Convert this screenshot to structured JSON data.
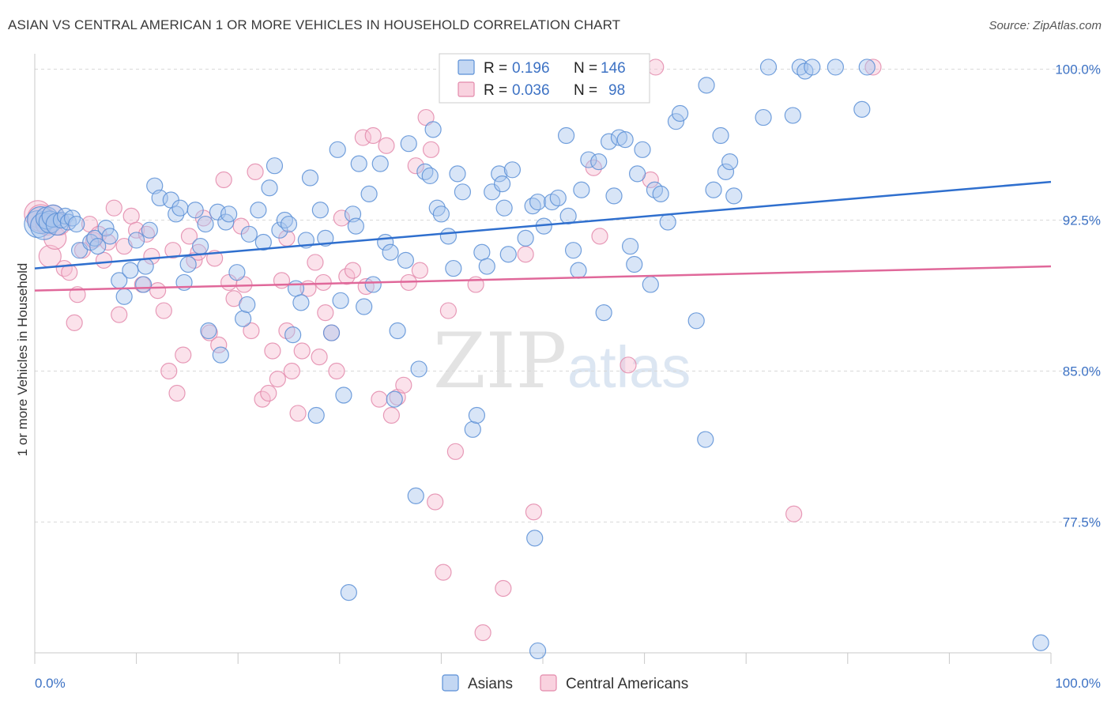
{
  "title": "ASIAN VS CENTRAL AMERICAN 1 OR MORE VEHICLES IN HOUSEHOLD CORRELATION CHART",
  "source": "Source: ZipAtlas.com",
  "watermark": {
    "zip": "ZIP",
    "atlas": "atlas"
  },
  "colors": {
    "asians_fill": "#a9c6ee",
    "asians_stroke": "#5a8fd6",
    "asians_line": "#2f6fce",
    "central_fill": "#f6bfd2",
    "central_stroke": "#e389ab",
    "central_line": "#e0689a",
    "tick_text": "#3d72c4",
    "grid": "#d9d9d9"
  },
  "legend": {
    "rows": [
      {
        "r_label": "R =",
        "r_value": "0.196",
        "n_label": "N =",
        "n_value": "146"
      },
      {
        "r_label": "R =",
        "r_value": "0.036",
        "n_label": "N =",
        "n_value": "98"
      }
    ]
  },
  "chart_data": {
    "type": "scatter",
    "title": "ASIAN VS CENTRAL AMERICAN 1 OR MORE VEHICLES IN HOUSEHOLD CORRELATION CHART",
    "xlabel": "",
    "ylabel": "1 or more Vehicles in Household",
    "xlim": [
      0,
      100
    ],
    "ylim": [
      71,
      101
    ],
    "x_tick_labels": {
      "left": "0.0%",
      "right": "100.0%"
    },
    "y_ticks": [
      {
        "value": 100,
        "label": "100.0%"
      },
      {
        "value": 92.5,
        "label": "92.5%"
      },
      {
        "value": 85,
        "label": "85.0%"
      },
      {
        "value": 77.5,
        "label": "77.5%"
      }
    ],
    "grid": true,
    "legend_position": "bottom-center",
    "series": [
      {
        "name": "Asians",
        "r": 0.196,
        "n": 146,
        "trend": {
          "x": [
            0,
            100
          ],
          "y": [
            90.1,
            94.4
          ]
        },
        "points": [
          [
            0.3,
            92.3
          ],
          [
            0.6,
            92.5
          ],
          [
            0.9,
            92.2
          ],
          [
            1.2,
            92.6
          ],
          [
            1.5,
            92.4
          ],
          [
            1.8,
            92.7
          ],
          [
            2.2,
            92.3
          ],
          [
            2.6,
            92.5
          ],
          [
            3.0,
            92.7
          ],
          [
            3.3,
            92.4
          ],
          [
            3.7,
            92.6
          ],
          [
            4.1,
            92.3
          ],
          [
            4.4,
            91.0
          ],
          [
            5.5,
            91.4
          ],
          [
            5.9,
            91.6
          ],
          [
            6.2,
            91.2
          ],
          [
            7.0,
            92.1
          ],
          [
            7.4,
            91.7
          ],
          [
            8.3,
            89.5
          ],
          [
            8.8,
            88.7
          ],
          [
            9.4,
            90.0
          ],
          [
            10.0,
            91.5
          ],
          [
            10.7,
            89.3
          ],
          [
            10.9,
            90.2
          ],
          [
            11.3,
            92.0
          ],
          [
            11.8,
            94.2
          ],
          [
            12.3,
            93.6
          ],
          [
            13.4,
            93.5
          ],
          [
            13.9,
            92.8
          ],
          [
            14.3,
            93.1
          ],
          [
            14.7,
            89.4
          ],
          [
            15.1,
            90.3
          ],
          [
            16.3,
            91.2
          ],
          [
            16.8,
            92.3
          ],
          [
            15.8,
            93.0
          ],
          [
            17.1,
            87.0
          ],
          [
            18.0,
            92.9
          ],
          [
            18.3,
            85.8
          ],
          [
            18.8,
            92.4
          ],
          [
            19.1,
            92.8
          ],
          [
            19.9,
            89.9
          ],
          [
            20.5,
            87.6
          ],
          [
            20.9,
            88.3
          ],
          [
            21.1,
            91.8
          ],
          [
            22.0,
            93.0
          ],
          [
            22.5,
            91.4
          ],
          [
            23.1,
            94.1
          ],
          [
            23.6,
            95.2
          ],
          [
            24.1,
            92.0
          ],
          [
            24.6,
            92.5
          ],
          [
            25.0,
            92.3
          ],
          [
            25.4,
            86.8
          ],
          [
            25.7,
            89.1
          ],
          [
            26.2,
            88.4
          ],
          [
            26.7,
            91.5
          ],
          [
            27.1,
            94.6
          ],
          [
            27.7,
            82.8
          ],
          [
            28.1,
            93.0
          ],
          [
            28.6,
            91.6
          ],
          [
            29.2,
            86.9
          ],
          [
            29.8,
            96.0
          ],
          [
            30.1,
            88.5
          ],
          [
            30.4,
            83.8
          ],
          [
            31.3,
            92.8
          ],
          [
            31.6,
            92.2
          ],
          [
            31.9,
            95.3
          ],
          [
            32.4,
            88.2
          ],
          [
            32.9,
            93.8
          ],
          [
            33.3,
            89.3
          ],
          [
            34.0,
            95.3
          ],
          [
            34.5,
            91.4
          ],
          [
            35.0,
            90.9
          ],
          [
            35.4,
            83.6
          ],
          [
            35.7,
            87.0
          ],
          [
            36.5,
            90.5
          ],
          [
            36.8,
            96.3
          ],
          [
            37.5,
            78.8
          ],
          [
            37.8,
            85.1
          ],
          [
            38.4,
            94.9
          ],
          [
            38.9,
            94.7
          ],
          [
            39.2,
            97.0
          ],
          [
            39.6,
            93.1
          ],
          [
            40.0,
            92.8
          ],
          [
            40.7,
            91.7
          ],
          [
            41.2,
            90.1
          ],
          [
            41.6,
            94.8
          ],
          [
            42.1,
            93.9
          ],
          [
            43.1,
            82.1
          ],
          [
            43.5,
            82.8
          ],
          [
            44.0,
            90.9
          ],
          [
            44.5,
            90.2
          ],
          [
            45.0,
            93.9
          ],
          [
            45.7,
            94.8
          ],
          [
            46.0,
            94.3
          ],
          [
            46.6,
            90.8
          ],
          [
            47.0,
            95.0
          ],
          [
            48.3,
            91.6
          ],
          [
            49.0,
            93.2
          ],
          [
            49.5,
            93.4
          ],
          [
            50.1,
            92.2
          ],
          [
            50.9,
            93.4
          ],
          [
            51.5,
            93.6
          ],
          [
            52.3,
            96.7
          ],
          [
            52.5,
            92.7
          ],
          [
            53.0,
            91.0
          ],
          [
            53.5,
            90.0
          ],
          [
            53.8,
            94.0
          ],
          [
            54.5,
            95.5
          ],
          [
            55.5,
            95.4
          ],
          [
            56.0,
            87.9
          ],
          [
            56.5,
            96.4
          ],
          [
            57.0,
            93.7
          ],
          [
            57.5,
            96.6
          ],
          [
            58.1,
            96.5
          ],
          [
            58.6,
            91.2
          ],
          [
            59.0,
            90.3
          ],
          [
            59.3,
            94.8
          ],
          [
            59.8,
            96.0
          ],
          [
            60.6,
            89.3
          ],
          [
            61.0,
            94.0
          ],
          [
            61.6,
            93.8
          ],
          [
            62.3,
            92.4
          ],
          [
            63.1,
            97.4
          ],
          [
            63.5,
            97.8
          ],
          [
            65.1,
            87.5
          ],
          [
            66.1,
            99.2
          ],
          [
            66.8,
            94.0
          ],
          [
            67.5,
            96.7
          ],
          [
            68.0,
            94.9
          ],
          [
            68.4,
            95.4
          ],
          [
            68.8,
            93.7
          ],
          [
            71.7,
            97.6
          ],
          [
            72.2,
            100.1
          ],
          [
            74.6,
            97.7
          ],
          [
            75.3,
            100.1
          ],
          [
            75.8,
            99.9
          ],
          [
            76.5,
            100.1
          ],
          [
            78.8,
            100.1
          ],
          [
            81.4,
            98.0
          ],
          [
            81.9,
            100.1
          ],
          [
            66.0,
            81.6
          ],
          [
            49.2,
            76.7
          ],
          [
            30.9,
            74.0
          ],
          [
            49.5,
            71.1
          ],
          [
            99.0,
            71.5
          ],
          [
            46.2,
            93.1
          ]
        ]
      },
      {
        "name": "Central Americans",
        "r": 0.036,
        "n": 98,
        "trend": {
          "x": [
            0,
            100
          ],
          "y": [
            89.0,
            90.2
          ]
        },
        "points": [
          [
            0.3,
            92.8
          ],
          [
            0.6,
            92.6
          ],
          [
            1.2,
            92.3
          ],
          [
            1.5,
            90.7
          ],
          [
            1.8,
            92.7
          ],
          [
            2.0,
            91.6
          ],
          [
            2.4,
            92.3
          ],
          [
            2.9,
            90.1
          ],
          [
            3.4,
            89.9
          ],
          [
            3.9,
            87.4
          ],
          [
            4.2,
            88.8
          ],
          [
            4.7,
            91.0
          ],
          [
            5.4,
            92.3
          ],
          [
            5.8,
            91.5
          ],
          [
            6.3,
            91.8
          ],
          [
            6.8,
            90.5
          ],
          [
            7.2,
            91.4
          ],
          [
            7.8,
            93.1
          ],
          [
            8.3,
            87.8
          ],
          [
            8.8,
            91.2
          ],
          [
            9.5,
            92.7
          ],
          [
            10.0,
            92.0
          ],
          [
            10.6,
            89.3
          ],
          [
            11.0,
            91.8
          ],
          [
            11.5,
            90.7
          ],
          [
            12.1,
            89.0
          ],
          [
            12.7,
            88.0
          ],
          [
            13.2,
            85.0
          ],
          [
            13.6,
            91.0
          ],
          [
            14.0,
            83.9
          ],
          [
            14.6,
            85.8
          ],
          [
            15.2,
            91.7
          ],
          [
            15.7,
            90.5
          ],
          [
            16.1,
            90.9
          ],
          [
            16.6,
            92.6
          ],
          [
            17.2,
            86.9
          ],
          [
            17.7,
            90.6
          ],
          [
            18.1,
            86.3
          ],
          [
            18.6,
            94.5
          ],
          [
            19.1,
            89.4
          ],
          [
            19.6,
            88.6
          ],
          [
            20.3,
            92.2
          ],
          [
            20.6,
            89.3
          ],
          [
            21.3,
            87.0
          ],
          [
            21.7,
            94.9
          ],
          [
            22.4,
            83.6
          ],
          [
            23.0,
            83.9
          ],
          [
            23.4,
            86.0
          ],
          [
            23.9,
            84.6
          ],
          [
            24.3,
            89.5
          ],
          [
            24.8,
            87.0
          ],
          [
            25.3,
            85.0
          ],
          [
            25.9,
            82.9
          ],
          [
            26.3,
            86.0
          ],
          [
            26.9,
            89.1
          ],
          [
            27.6,
            90.4
          ],
          [
            28.0,
            85.7
          ],
          [
            28.4,
            89.4
          ],
          [
            29.2,
            86.9
          ],
          [
            29.7,
            85.0
          ],
          [
            30.2,
            92.6
          ],
          [
            30.7,
            89.7
          ],
          [
            31.3,
            90.0
          ],
          [
            32.3,
            96.6
          ],
          [
            32.6,
            89.2
          ],
          [
            33.3,
            96.7
          ],
          [
            33.9,
            83.6
          ],
          [
            34.6,
            96.2
          ],
          [
            35.1,
            82.8
          ],
          [
            35.7,
            83.7
          ],
          [
            36.3,
            84.3
          ],
          [
            36.8,
            89.4
          ],
          [
            37.5,
            95.2
          ],
          [
            37.9,
            90.0
          ],
          [
            38.5,
            97.6
          ],
          [
            39.0,
            96.0
          ],
          [
            39.4,
            78.5
          ],
          [
            40.2,
            75.0
          ],
          [
            40.7,
            88.0
          ],
          [
            41.4,
            81.0
          ],
          [
            44.1,
            72.0
          ],
          [
            46.1,
            74.2
          ],
          [
            47.5,
            100.1
          ],
          [
            48.3,
            90.8
          ],
          [
            49.1,
            78.0
          ],
          [
            51.9,
            100.1
          ],
          [
            53.0,
            100.0
          ],
          [
            55.0,
            95.1
          ],
          [
            55.6,
            91.7
          ],
          [
            57.0,
            100.0
          ],
          [
            58.4,
            85.3
          ],
          [
            60.6,
            94.5
          ],
          [
            61.1,
            100.1
          ],
          [
            74.7,
            77.9
          ],
          [
            82.5,
            100.1
          ],
          [
            43.4,
            89.3
          ],
          [
            28.6,
            87.9
          ],
          [
            24.8,
            91.6
          ]
        ]
      }
    ]
  },
  "bottom_legend": {
    "items": [
      "Asians",
      "Central Americans"
    ]
  }
}
